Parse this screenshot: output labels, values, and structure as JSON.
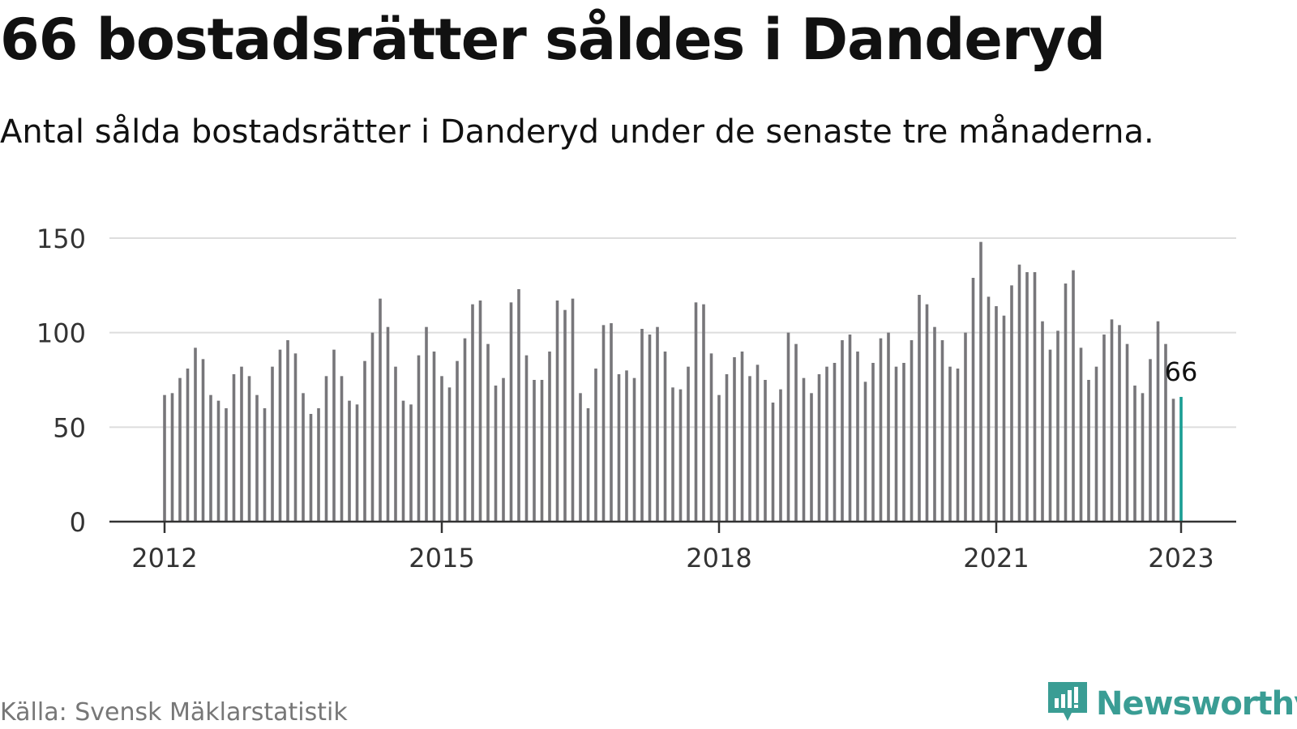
{
  "header": {
    "title": "66 bostadsrätter såldes i Danderyd",
    "subtitle": "Antal sålda bostadsrätter i Danderyd under de senaste tre månaderna."
  },
  "footer": {
    "source": "Källa: Svensk Mäklarstatistik",
    "brand": "Newsworthy"
  },
  "colors": {
    "bar": "#77767a",
    "highlight": "#1a9e94",
    "grid": "#dddddd",
    "axis": "#333333",
    "brand": "#3a9d94"
  },
  "chart_data": {
    "type": "bar",
    "start": "2012-01",
    "frequency": "monthly",
    "values": [
      67,
      68,
      76,
      81,
      92,
      86,
      67,
      64,
      60,
      78,
      82,
      77,
      67,
      60,
      82,
      91,
      96,
      89,
      68,
      57,
      60,
      77,
      91,
      77,
      64,
      62,
      85,
      100,
      118,
      103,
      82,
      64,
      62,
      88,
      103,
      90,
      77,
      71,
      85,
      97,
      115,
      117,
      94,
      72,
      76,
      116,
      123,
      88,
      75,
      75,
      90,
      117,
      112,
      118,
      68,
      60,
      81,
      104,
      105,
      78,
      80,
      76,
      102,
      99,
      103,
      90,
      71,
      70,
      82,
      116,
      115,
      89,
      67,
      78,
      87,
      90,
      77,
      83,
      75,
      63,
      70,
      100,
      94,
      76,
      68,
      78,
      82,
      84,
      96,
      99,
      90,
      74,
      84,
      97,
      100,
      82,
      84,
      96,
      120,
      115,
      103,
      96,
      82,
      81,
      100,
      129,
      148,
      119,
      114,
      109,
      125,
      136,
      132,
      132,
      106,
      91,
      101,
      126,
      133,
      92,
      75,
      82,
      99,
      107,
      104,
      94,
      72,
      68,
      86,
      106,
      94,
      65,
      66
    ],
    "highlight_last": true,
    "last_label": "66",
    "x_ticks": [
      "2012",
      "2015",
      "2018",
      "2021",
      "2023"
    ],
    "y_ticks": [
      "0",
      "50",
      "100",
      "150"
    ],
    "ylim": [
      0,
      150
    ],
    "grid": true
  }
}
